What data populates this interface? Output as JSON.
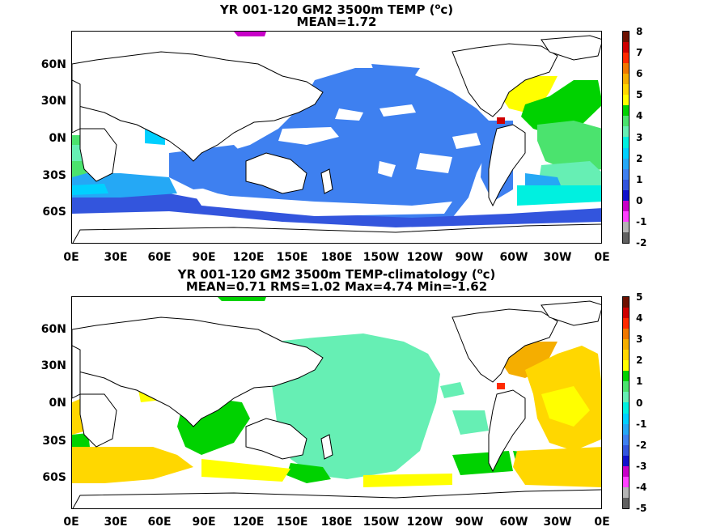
{
  "top": {
    "title_line1": "YR 001-120 GM2 3500m TEMP (",
    "title_sup": "o",
    "title_unit": "c)",
    "title_line2": "MEAN=1.72",
    "colorbar": {
      "labels": [
        "8",
        "7",
        "6",
        "5",
        "4",
        "3",
        "2",
        "1",
        "0",
        "-1",
        "-2"
      ],
      "colors": [
        "#6e1000",
        "#cf0000",
        "#ff2a00",
        "#f07800",
        "#f5ae00",
        "#ffd700",
        "#ffff00",
        "#00d200",
        "#4be36e",
        "#66efb4",
        "#00f0e0",
        "#00d0ff",
        "#25a8f5",
        "#3e80f0",
        "#3355dd",
        "#1111cc",
        "#c800c8",
        "#ff40ff",
        "#b4b4b4",
        "#606060"
      ]
    }
  },
  "bottom": {
    "title_line1": "YR 001-120 GM2 3500m TEMP-climatology (",
    "title_sup": "o",
    "title_unit": "c)",
    "title_line2": "MEAN=0.71   RMS=1.02   Max=4.74   Min=-1.62",
    "colorbar": {
      "labels": [
        "5",
        "4",
        "3",
        "2",
        "1",
        "0",
        "-1",
        "-2",
        "-3",
        "-4",
        "-5"
      ],
      "colors": [
        "#6e1000",
        "#cf0000",
        "#ff2a00",
        "#f07800",
        "#f5ae00",
        "#ffd700",
        "#ffff00",
        "#00d200",
        "#4be36e",
        "#66efb4",
        "#00f0e0",
        "#00d0ff",
        "#25a8f5",
        "#3e80f0",
        "#3355dd",
        "#1111cc",
        "#c800c8",
        "#ff40ff",
        "#b4b4b4",
        "#606060"
      ]
    }
  },
  "axes": {
    "lat_labels": [
      "60N",
      "30N",
      "0N",
      "30S",
      "60S"
    ],
    "lon_labels": [
      "0E",
      "30E",
      "60E",
      "90E",
      "120E",
      "150E",
      "180E",
      "150W",
      "120W",
      "90W",
      "60W",
      "30W",
      "0E"
    ]
  }
}
